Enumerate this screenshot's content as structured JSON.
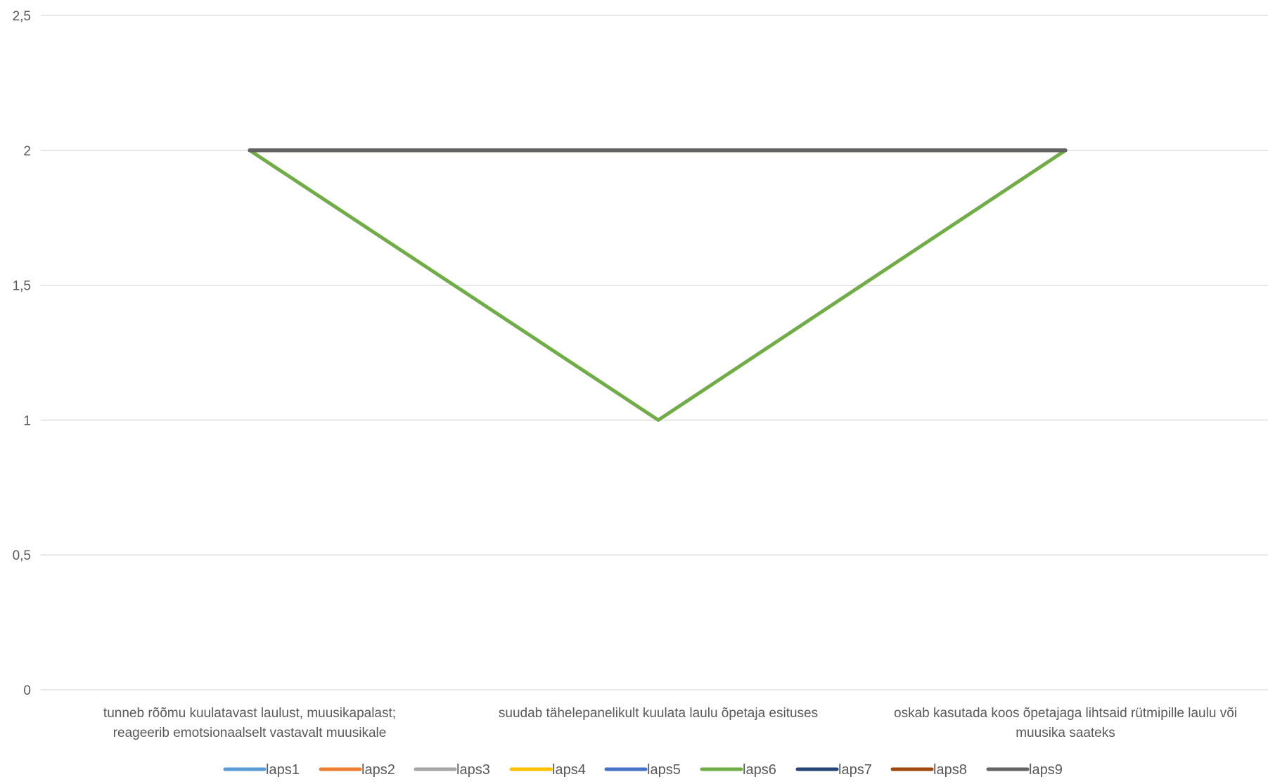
{
  "chart_data": {
    "type": "line",
    "title": "",
    "xlabel": "",
    "ylabel": "",
    "ylim": [
      0,
      2.5
    ],
    "y_ticks": [
      "0",
      "0,5",
      "1",
      "1,5",
      "2",
      "2,5"
    ],
    "y_tick_values": [
      0,
      0.5,
      1,
      1.5,
      2,
      2.5
    ],
    "grid": true,
    "legend_position": "bottom",
    "categories": [
      [
        "tunneb rõõmu kuulatavast laulust, muusikapalast;",
        "reageerib emotsionaalselt vastavalt muusikale"
      ],
      [
        "suudab tähelepanelikult kuulata laulu õpetaja esituses"
      ],
      [
        "oskab kasutada koos õpetajaga lihtsaid rütmipille laulu või",
        "muusika saateks"
      ]
    ],
    "series": [
      {
        "name": "laps1",
        "color": "#5B9BD5",
        "values": [
          2,
          2,
          2
        ]
      },
      {
        "name": "laps2",
        "color": "#ED7D31",
        "values": [
          2,
          2,
          2
        ]
      },
      {
        "name": "laps3",
        "color": "#A5A5A5",
        "values": [
          2,
          2,
          2
        ]
      },
      {
        "name": "laps4",
        "color": "#FFC000",
        "values": [
          2,
          2,
          2
        ]
      },
      {
        "name": "laps5",
        "color": "#4472C4",
        "values": [
          2,
          2,
          2
        ]
      },
      {
        "name": "laps6",
        "color": "#70AD47",
        "values": [
          2,
          1,
          2
        ]
      },
      {
        "name": "laps7",
        "color": "#264478",
        "values": [
          2,
          2,
          2
        ]
      },
      {
        "name": "laps8",
        "color": "#9E480E",
        "values": [
          2,
          2,
          2
        ]
      },
      {
        "name": "laps9",
        "color": "#636363",
        "values": [
          2,
          2,
          2
        ]
      }
    ]
  }
}
